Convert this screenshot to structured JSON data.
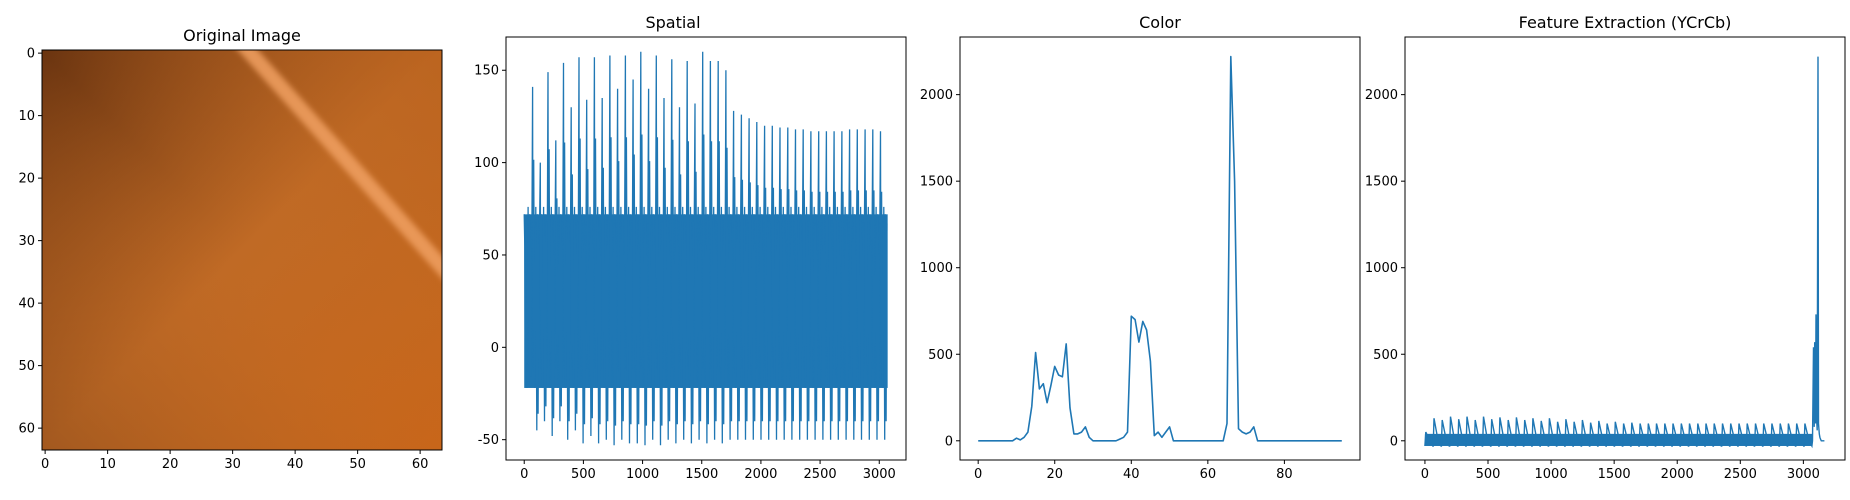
{
  "chart_data": [
    {
      "type": "image",
      "title": "Original Image",
      "xlim": [
        -0.5,
        63.5
      ],
      "ylim": [
        63.5,
        -0.5
      ],
      "xticks": [
        0,
        10,
        20,
        30,
        40,
        50,
        60
      ],
      "yticks": [
        0,
        10,
        20,
        30,
        40,
        50,
        60
      ],
      "colors": {
        "top_left": "#6a3410",
        "top_right": "#b8601c",
        "center": "#c06a25",
        "bottom_left": "#8a4a1a",
        "bottom_right": "#c8661a",
        "stripe": "#f0a060"
      },
      "stripe": {
        "from": [
          31,
          -0.5
        ],
        "to": [
          63.5,
          36
        ]
      }
    },
    {
      "type": "line",
      "title": "Spatial",
      "color": "#1f77b4",
      "xlim": [
        -154,
        3226
      ],
      "ylim": [
        -61,
        168
      ],
      "xticks": [
        0,
        500,
        1000,
        1500,
        2000,
        2500,
        3000
      ],
      "yticks": [
        -50,
        0,
        50,
        100,
        150
      ],
      "x_range": [
        0,
        3071
      ],
      "band": [
        -22,
        72
      ],
      "peaks": [
        55,
        141,
        100,
        149,
        112,
        154,
        130,
        157,
        134,
        157,
        135,
        158,
        140,
        158,
        145,
        160,
        140,
        158,
        135,
        156,
        130,
        155,
        132,
        160,
        155,
        155,
        150,
        128,
        126,
        124,
        122,
        120,
        120,
        119,
        119,
        118,
        118,
        117,
        117,
        117,
        117,
        117,
        118,
        118,
        118,
        118,
        117
      ],
      "troughs": [
        -20,
        -45,
        -40,
        -48,
        -40,
        -50,
        -45,
        -52,
        -48,
        -52,
        -50,
        -53,
        -50,
        -52,
        -52,
        -53,
        -50,
        -53,
        -50,
        -52,
        -50,
        -52,
        -50,
        -52,
        -50,
        -52,
        -50,
        -50,
        -50,
        -50,
        -50,
        -50,
        -50,
        -50,
        -50,
        -50,
        -50,
        -50,
        -50,
        -50,
        -50,
        -50,
        -50,
        -50,
        -50,
        -50,
        -50
      ]
    },
    {
      "type": "line",
      "title": "Color",
      "color": "#1f77b4",
      "xlim": [
        -4.75,
        99.75
      ],
      "ylim": [
        -111,
        2333
      ],
      "xticks": [
        0,
        20,
        40,
        60,
        80
      ],
      "yticks": [
        0,
        500,
        1000,
        1500,
        2000
      ],
      "x": [
        0,
        9,
        10,
        11,
        12,
        13,
        14,
        15,
        16,
        17,
        18,
        19,
        20,
        21,
        22,
        23,
        24,
        25,
        26,
        27,
        28,
        29,
        30,
        31,
        36,
        37,
        38,
        39,
        40,
        41,
        42,
        43,
        44,
        45,
        46,
        47,
        48,
        49,
        50,
        51,
        64,
        65,
        66,
        67,
        68,
        69,
        70,
        71,
        72,
        73,
        95
      ],
      "y": [
        0,
        0,
        15,
        5,
        20,
        50,
        200,
        510,
        300,
        330,
        220,
        320,
        430,
        380,
        370,
        560,
        190,
        40,
        40,
        50,
        80,
        20,
        0,
        0,
        0,
        10,
        20,
        50,
        720,
        700,
        570,
        690,
        640,
        460,
        30,
        50,
        20,
        50,
        80,
        0,
        0,
        100,
        2220,
        1500,
        70,
        50,
        40,
        50,
        80,
        0,
        0
      ]
    },
    {
      "type": "line",
      "title": "Feature Extraction (YCrCb)",
      "color": "#1f77b4",
      "xlim": [
        -158,
        3330
      ],
      "ylim": [
        -111,
        2333
      ],
      "xticks": [
        0,
        500,
        1000,
        1500,
        2000,
        2500,
        3000
      ],
      "yticks": [
        0,
        500,
        1000,
        1500,
        2000
      ],
      "comb_range": [
        0,
        3071
      ],
      "comb_base": -30,
      "comb_peaks": [
        50,
        130,
        120,
        140,
        125,
        140,
        120,
        140,
        125,
        135,
        120,
        135,
        120,
        130,
        115,
        130,
        110,
        125,
        110,
        120,
        105,
        115,
        100,
        110,
        100,
        105,
        100,
        100,
        100,
        100,
        100,
        100,
        100,
        100,
        100,
        100,
        100,
        100,
        100,
        100,
        100,
        100,
        100,
        100,
        100,
        100,
        100
      ],
      "tail_x": [
        3072,
        3080,
        3086,
        3090,
        3096,
        3100,
        3106,
        3110,
        3116,
        3120,
        3126,
        3131,
        3136,
        3142,
        3152,
        3167
      ],
      "tail_y": [
        0,
        540,
        80,
        570,
        100,
        730,
        120,
        60,
        2220,
        100,
        40,
        20,
        10,
        0,
        0,
        0
      ]
    }
  ]
}
